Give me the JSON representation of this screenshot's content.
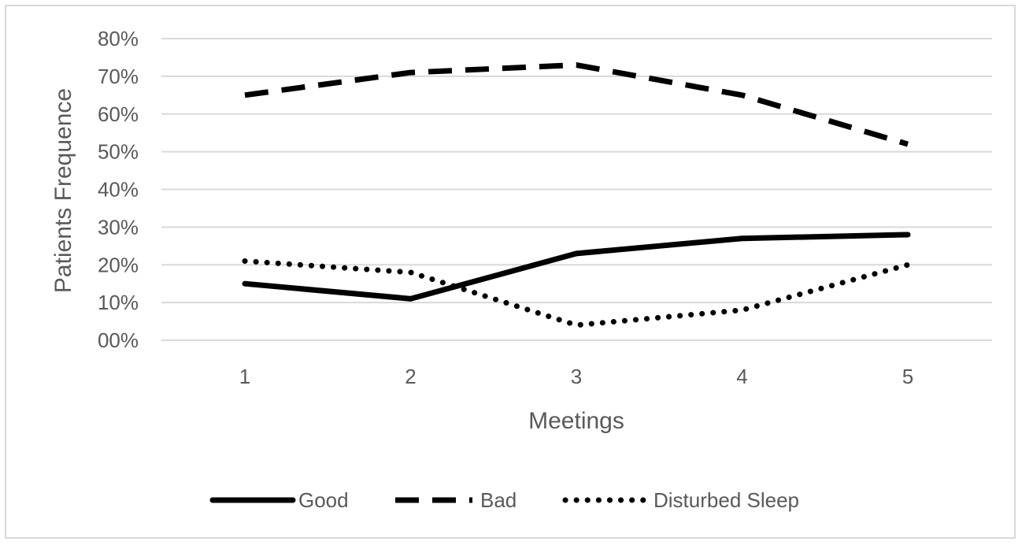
{
  "chart_data": {
    "type": "line",
    "title": "",
    "xlabel": "Meetings",
    "ylabel": "Patients Frequence",
    "categories": [
      "1",
      "2",
      "3",
      "4",
      "5"
    ],
    "y_ticks": [
      "00%",
      "10%",
      "20%",
      "30%",
      "40%",
      "50%",
      "60%",
      "70%",
      "80%"
    ],
    "ylim": [
      0,
      0.8
    ],
    "grid": "horizontal",
    "legend_position": "bottom",
    "series": [
      {
        "name": "Good",
        "style": "solid",
        "color": "#000000",
        "values": [
          0.15,
          0.11,
          0.23,
          0.27,
          0.28
        ]
      },
      {
        "name": "Bad",
        "style": "dashed",
        "color": "#000000",
        "values": [
          0.65,
          0.71,
          0.73,
          0.65,
          0.52
        ]
      },
      {
        "name": "Disturbed Sleep",
        "style": "dotted",
        "color": "#000000",
        "values": [
          0.21,
          0.18,
          0.04,
          0.08,
          0.2
        ]
      }
    ]
  }
}
